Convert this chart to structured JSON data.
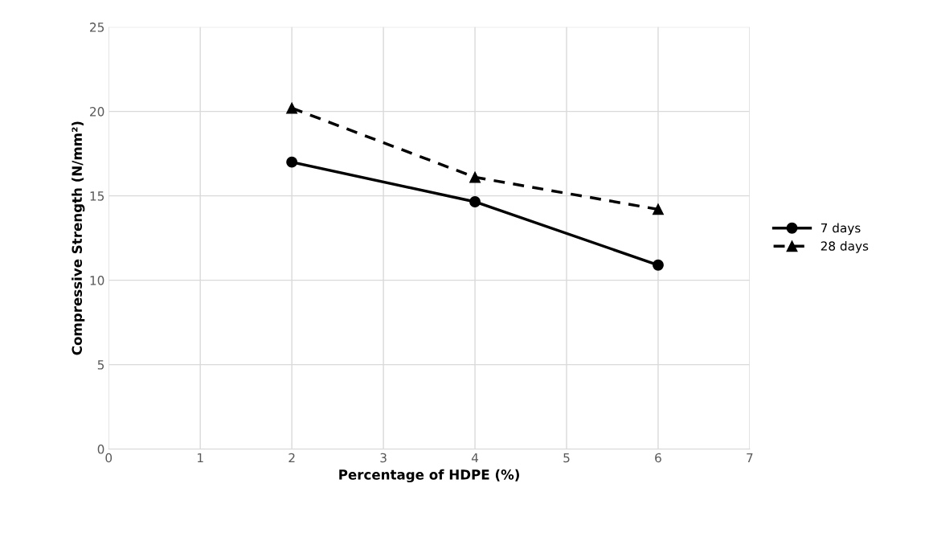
{
  "chart_data": {
    "type": "line",
    "xlabel": "Percentage of HDPE (%)",
    "ylabel": "Compressive Strength (N/mm²)",
    "x": [
      2,
      4,
      6
    ],
    "series": [
      {
        "name": "7 days",
        "color": "#000000",
        "values": [
          17.0,
          14.65,
          10.9
        ],
        "marker": "circle",
        "line_style": "solid"
      },
      {
        "name": "28 days",
        "color": "#000000",
        "values": [
          20.2,
          16.1,
          14.2
        ],
        "marker": "triangle",
        "line_style": "dashed"
      }
    ],
    "xlim": [
      0,
      7
    ],
    "xticks": [
      0,
      1,
      2,
      3,
      4,
      5,
      6,
      7
    ],
    "ylim": [
      0,
      25
    ],
    "yticks": [
      0,
      5,
      10,
      15,
      20,
      25
    ],
    "grid": true,
    "legend": "right"
  }
}
